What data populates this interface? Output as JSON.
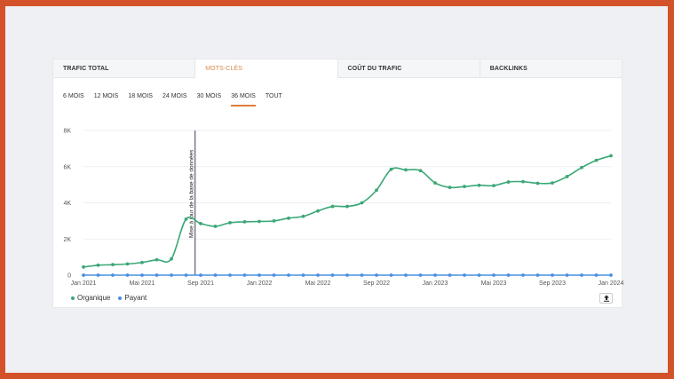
{
  "tabs": [
    {
      "label": "TRAFIC TOTAL",
      "active": false
    },
    {
      "label": "MOTS-CLÉS",
      "active": true
    },
    {
      "label": "COÛT DU TRAFIC",
      "active": false
    },
    {
      "label": "BACKLINKS",
      "active": false
    }
  ],
  "periods": [
    {
      "label": "6 MOIS",
      "active": false
    },
    {
      "label": "12 MOIS",
      "active": false
    },
    {
      "label": "18 MOIS",
      "active": false
    },
    {
      "label": "24 MOIS",
      "active": false
    },
    {
      "label": "30 MOIS",
      "active": false
    },
    {
      "label": "36 MOIS",
      "active": true
    },
    {
      "label": "TOUT",
      "active": false
    }
  ],
  "legend": [
    {
      "label": "Organique",
      "color": "#3aa876"
    },
    {
      "label": "Payant",
      "color": "#4a8fe0"
    }
  ],
  "export_icon": "upload-icon",
  "chart_data": {
    "type": "line",
    "x_tick_labels": [
      "Jan 2021",
      "Mai 2021",
      "Sep 2021",
      "Jan 2022",
      "Mai 2022",
      "Sep 2022",
      "Jan 2023",
      "Mai 2023",
      "Sep 2023",
      "Jan 2024"
    ],
    "y_tick_labels": [
      "0",
      "2K",
      "4K",
      "6K",
      "8K"
    ],
    "ylim": [
      0,
      8000
    ],
    "grid": true,
    "legend_position": "bottom-left",
    "annotation": {
      "label": "Mise à jour de la base de données",
      "x": "2021-08"
    },
    "series": [
      {
        "name": "Organique",
        "color": "#3aa876",
        "x": [
          "2021-01",
          "2021-02",
          "2021-03",
          "2021-04",
          "2021-05",
          "2021-06",
          "2021-07",
          "2021-08",
          "2021-09",
          "2021-10",
          "2021-11",
          "2021-12",
          "2022-01",
          "2022-02",
          "2022-03",
          "2022-04",
          "2022-05",
          "2022-06",
          "2022-07",
          "2022-08",
          "2022-09",
          "2022-10",
          "2022-11",
          "2022-12",
          "2023-01",
          "2023-02",
          "2023-03",
          "2023-04",
          "2023-05",
          "2023-06",
          "2023-07",
          "2023-08",
          "2023-09",
          "2023-10",
          "2023-11",
          "2023-12",
          "2024-01"
        ],
        "values": [
          450,
          550,
          580,
          620,
          700,
          850,
          900,
          3100,
          2850,
          2700,
          2900,
          2950,
          2970,
          3000,
          3150,
          3250,
          3550,
          3800,
          3800,
          4000,
          4700,
          5850,
          5820,
          5780,
          5100,
          4850,
          4900,
          4970,
          4950,
          5150,
          5170,
          5080,
          5100,
          5450,
          5950,
          6350,
          6600
        ]
      },
      {
        "name": "Payant",
        "color": "#4a8fe0",
        "x": [
          "2021-01",
          "2021-02",
          "2021-03",
          "2021-04",
          "2021-05",
          "2021-06",
          "2021-07",
          "2021-08",
          "2021-09",
          "2021-10",
          "2021-11",
          "2021-12",
          "2022-01",
          "2022-02",
          "2022-03",
          "2022-04",
          "2022-05",
          "2022-06",
          "2022-07",
          "2022-08",
          "2022-09",
          "2022-10",
          "2022-11",
          "2022-12",
          "2023-01",
          "2023-02",
          "2023-03",
          "2023-04",
          "2023-05",
          "2023-06",
          "2023-07",
          "2023-08",
          "2023-09",
          "2023-10",
          "2023-11",
          "2023-12",
          "2024-01"
        ],
        "values": [
          0,
          0,
          0,
          0,
          0,
          0,
          0,
          0,
          0,
          0,
          0,
          0,
          0,
          0,
          0,
          0,
          0,
          0,
          0,
          0,
          0,
          0,
          0,
          0,
          0,
          0,
          0,
          0,
          0,
          0,
          0,
          0,
          0,
          0,
          0,
          0,
          0
        ]
      }
    ]
  }
}
